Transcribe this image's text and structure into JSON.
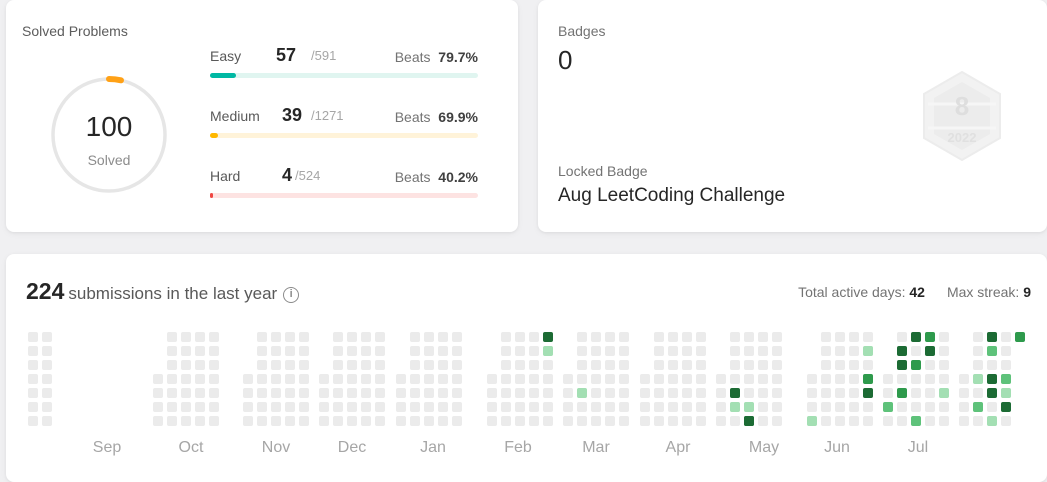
{
  "solved": {
    "title": "Solved Problems",
    "total": "100",
    "total_label": "Solved",
    "difficulties": [
      {
        "name": "Easy",
        "solved": "57",
        "total": "/591",
        "beats_label": "Beats",
        "beats": "79.7%",
        "progress": 0.096,
        "color": "#00b8a3",
        "track": "#e0f5f0"
      },
      {
        "name": "Medium",
        "solved": "39",
        "total": "/1271",
        "beats_label": "Beats",
        "beats": "69.9%",
        "progress": 0.031,
        "color": "#ffb800",
        "track": "#fff3d9"
      },
      {
        "name": "Hard",
        "solved": "4",
        "total": "/524",
        "beats_label": "Beats",
        "beats": "40.2%",
        "progress": 0.008,
        "color": "#ef4743",
        "track": "#fde3e2"
      }
    ],
    "ring_accent": "#ffa116"
  },
  "badges": {
    "label": "Badges",
    "count": "0",
    "locked_label": "Locked Badge",
    "locked_name": "Aug LeetCoding Challenge",
    "badge_icon": "locked-badge-8-2022-icon",
    "badge_digit": "8",
    "badge_year": "2022"
  },
  "submissions": {
    "count": "224",
    "label": "submissions in the last year",
    "active_label": "Total active days:",
    "active_value": "42",
    "streak_label": "Max streak:",
    "streak_value": "9",
    "months": [
      "Sep",
      "Oct",
      "Nov",
      "Dec",
      "Jan",
      "Feb",
      "Mar",
      "Apr",
      "May",
      "Jun",
      "Jul"
    ],
    "colors": {
      "empty": "#ebebeb",
      "l1": "#a3dfb3",
      "l2": "#5ec27a",
      "l3": "#2e9a4c",
      "l4": "#1c6b34"
    }
  }
}
